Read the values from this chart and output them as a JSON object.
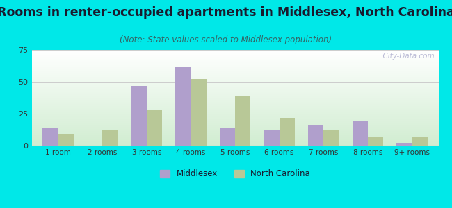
{
  "title": "Rooms in renter-occupied apartments in Middlesex, North Carolina",
  "subtitle": "(Note: State values scaled to Middlesex population)",
  "categories": [
    "1 room",
    "2 rooms",
    "3 rooms",
    "4 rooms",
    "5 rooms",
    "6 rooms",
    "7 rooms",
    "8 rooms",
    "9+ rooms"
  ],
  "middlesex_values": [
    14,
    0,
    47,
    62,
    14,
    12,
    16,
    19,
    2
  ],
  "nc_values": [
    9,
    12,
    28,
    52,
    39,
    22,
    12,
    7,
    7
  ],
  "middlesex_color": "#b09fcc",
  "nc_color": "#b8c897",
  "ylim": [
    0,
    75
  ],
  "yticks": [
    0,
    25,
    50,
    75
  ],
  "background_color": "#00e8e8",
  "grid_color": "#cccccc",
  "title_fontsize": 12.5,
  "subtitle_fontsize": 8.5,
  "legend_labels": [
    "Middlesex",
    "North Carolina"
  ],
  "bar_width": 0.35,
  "watermark": "  City-Data.com"
}
